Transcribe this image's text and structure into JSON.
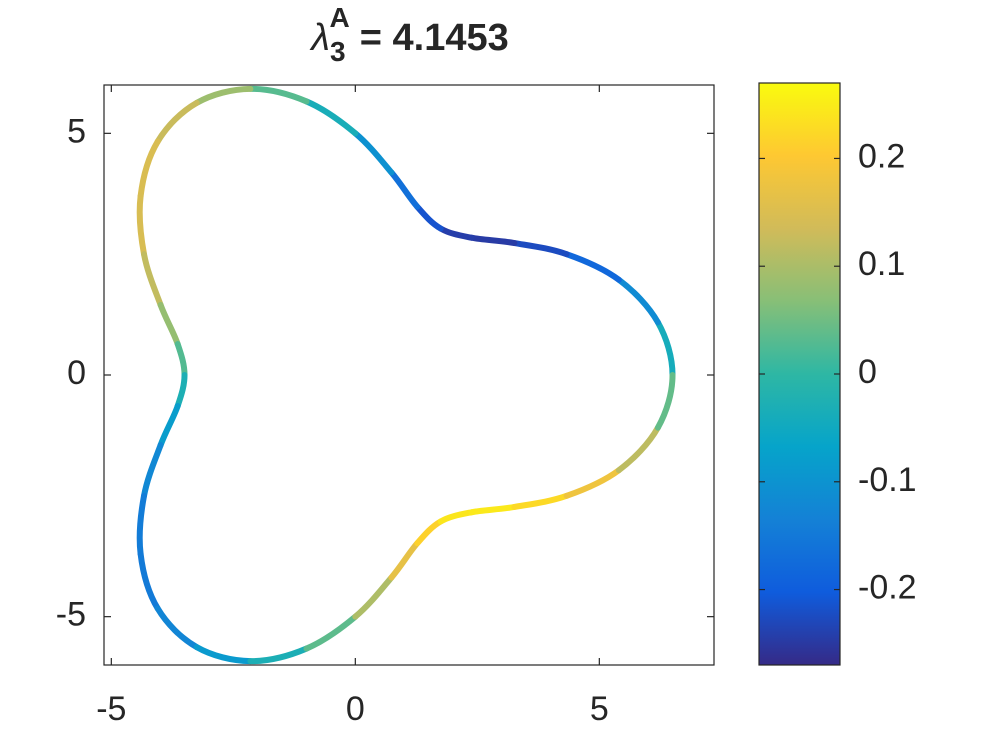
{
  "chart_data": {
    "type": "colored-curve",
    "title": {
      "symbol": "λ",
      "subscript": "3",
      "superscript": "A",
      "text": "= 4.1453"
    },
    "x": [
      6.5,
      6.2,
      5.4,
      4.33,
      3.26,
      2.38,
      1.75,
      1.27,
      0.74,
      0,
      -1.0,
      -2.15,
      -3.25,
      -4.05,
      -4.4,
      -4.33,
      -3.99,
      -3.64,
      -3.5,
      -3.64,
      -3.99,
      -4.33,
      -4.4,
      -4.05,
      -3.25,
      -2.15,
      -1.0,
      0,
      0.74,
      1.27,
      1.75,
      2.38,
      3.26,
      4.33,
      5.4,
      6.2
    ],
    "y": [
      0,
      1.09,
      1.97,
      2.5,
      2.73,
      2.84,
      3.03,
      3.48,
      4.19,
      5,
      5.66,
      5.92,
      5.63,
      4.83,
      3.7,
      2.5,
      1.45,
      0.64,
      0,
      -0.64,
      -1.45,
      -2.5,
      -3.7,
      -4.83,
      -5.63,
      -5.92,
      -5.66,
      -5,
      -4.19,
      -3.48,
      -3.03,
      -2.84,
      -2.73,
      -2.5,
      -1.97,
      -1.09
    ],
    "c": [
      0,
      -0.08,
      -0.153,
      -0.208,
      -0.242,
      -0.251,
      -0.234,
      -0.195,
      -0.137,
      -0.07,
      -0.001,
      0.063,
      0.112,
      0.143,
      0.152,
      0.138,
      0.105,
      0.056,
      0,
      -0.056,
      -0.105,
      -0.138,
      -0.152,
      -0.143,
      -0.112,
      -0.063,
      0.001,
      0.07,
      0.137,
      0.195,
      0.234,
      0.251,
      0.242,
      0.208,
      0.153,
      0.08
    ],
    "closed": true,
    "xlim": [
      -5.15,
      7.35
    ],
    "xticks": [
      -5,
      0,
      5
    ],
    "ylim": [
      -6,
      6
    ],
    "yticks": [
      -5,
      0,
      5
    ],
    "clim": [
      -0.27,
      0.27
    ],
    "cticks": [
      -0.2,
      -0.1,
      0,
      0.1,
      0.2
    ],
    "colormap": [
      "#352a87",
      "#0f5cdd",
      "#1481d6",
      "#06a4ca",
      "#2eb7a4",
      "#87bf77",
      "#d1bb59",
      "#fec832",
      "#f9fb0e"
    ],
    "colorbar": true,
    "box": true
  }
}
